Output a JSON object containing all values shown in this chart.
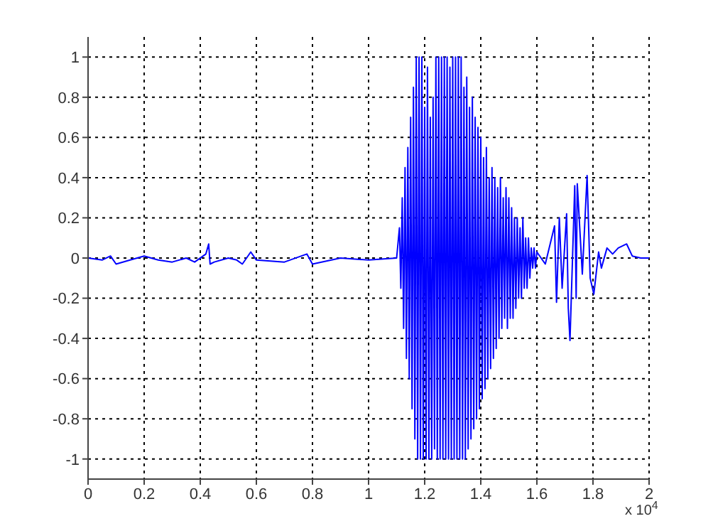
{
  "chart_data": {
    "type": "line",
    "color": "#0000ff",
    "grid": true,
    "xlim": [
      0,
      2
    ],
    "ylim": [
      -1.1,
      1.1
    ],
    "xticks": [
      0,
      0.2,
      0.4,
      0.6,
      0.8,
      1,
      1.2,
      1.4,
      1.6,
      1.8,
      2
    ],
    "yticks": [
      -1,
      -0.8,
      -0.6,
      -0.4,
      -0.2,
      0,
      0.2,
      0.4,
      0.6,
      0.8,
      1
    ],
    "annotations": [
      "x 10$^{4}$"
    ],
    "x": [
      0,
      0.05,
      0.08,
      0.1,
      0.15,
      0.2,
      0.25,
      0.3,
      0.35,
      0.38,
      0.42,
      0.43,
      0.435,
      0.45,
      0.5,
      0.53,
      0.55,
      0.58,
      0.6,
      0.7,
      0.78,
      0.8,
      0.9,
      1,
      1.1,
      1.11,
      1.115,
      1.12,
      1.125,
      1.13,
      1.135,
      1.14,
      1.145,
      1.15,
      1.155,
      1.16,
      1.165,
      1.17,
      1.175,
      1.18,
      1.185,
      1.19,
      1.195,
      1.2,
      1.205,
      1.21,
      1.215,
      1.22,
      1.225,
      1.23,
      1.235,
      1.24,
      1.245,
      1.25,
      1.255,
      1.26,
      1.265,
      1.27,
      1.275,
      1.28,
      1.285,
      1.29,
      1.295,
      1.3,
      1.305,
      1.31,
      1.315,
      1.32,
      1.325,
      1.33,
      1.335,
      1.34,
      1.345,
      1.35,
      1.355,
      1.36,
      1.365,
      1.37,
      1.375,
      1.38,
      1.385,
      1.39,
      1.395,
      1.4,
      1.405,
      1.41,
      1.415,
      1.42,
      1.425,
      1.43,
      1.435,
      1.44,
      1.445,
      1.45,
      1.455,
      1.46,
      1.465,
      1.47,
      1.475,
      1.48,
      1.485,
      1.49,
      1.495,
      1.5,
      1.505,
      1.51,
      1.515,
      1.52,
      1.525,
      1.53,
      1.535,
      1.54,
      1.545,
      1.55,
      1.555,
      1.56,
      1.565,
      1.57,
      1.575,
      1.58,
      1.585,
      1.59,
      1.595,
      1.6,
      1.63,
      1.663,
      1.67,
      1.68,
      1.69,
      1.706,
      1.712,
      1.718,
      1.735,
      1.74,
      1.744,
      1.762,
      1.779,
      1.79,
      1.803,
      1.82,
      1.83,
      1.85,
      1.87,
      1.89,
      1.92,
      1.94,
      1.97,
      2
    ],
    "values": [
      0,
      -0.01,
      0.01,
      -0.03,
      -0.01,
      0.01,
      -0.01,
      -0.02,
      0,
      -0.02,
      0.02,
      0.07,
      -0.03,
      -0.02,
      0,
      -0.01,
      -0.03,
      0.03,
      -0.01,
      -0.02,
      0.02,
      -0.03,
      0,
      -0.01,
      0,
      0.15,
      -0.15,
      0.3,
      -0.35,
      0.45,
      -0.5,
      0.55,
      -0.6,
      0.7,
      -0.75,
      0.85,
      -0.9,
      1,
      -1,
      1,
      -1,
      1,
      -1,
      0.75,
      -1,
      0.95,
      -1,
      0.7,
      -1,
      0.8,
      -0.95,
      1,
      -1,
      1,
      -1,
      1,
      -1,
      1,
      -1,
      1,
      -1,
      0.95,
      -1,
      1,
      -1,
      1,
      -1,
      1,
      -1,
      1,
      -1,
      0.85,
      -1,
      0.9,
      -0.95,
      0.75,
      -0.9,
      0.8,
      -0.85,
      0.7,
      -0.8,
      0.65,
      -0.75,
      0.6,
      -0.7,
      0.5,
      -0.65,
      0.55,
      -0.6,
      0.4,
      -0.55,
      0.45,
      -0.5,
      0.4,
      -0.45,
      0.35,
      -0.4,
      0.4,
      -0.35,
      0.3,
      -0.3,
      0.35,
      -0.35,
      0.3,
      -0.3,
      0.25,
      -0.3,
      0.2,
      -0.25,
      0.2,
      -0.2,
      0.15,
      -0.2,
      0.2,
      -0.15,
      0.1,
      -0.15,
      0.1,
      -0.1,
      0.05,
      -0.05,
      0.05,
      -0.05,
      0.03,
      -0.03,
      0.16,
      -0.22,
      0.2,
      -0.15,
      0.22,
      -0.25,
      -0.41,
      0.36,
      -0.2,
      0.37,
      -0.08,
      0.41,
      -0.1,
      -0.18,
      0.03,
      -0.05,
      0.05,
      0.02,
      0.05,
      0.07,
      0.01,
      0,
      0
    ]
  }
}
